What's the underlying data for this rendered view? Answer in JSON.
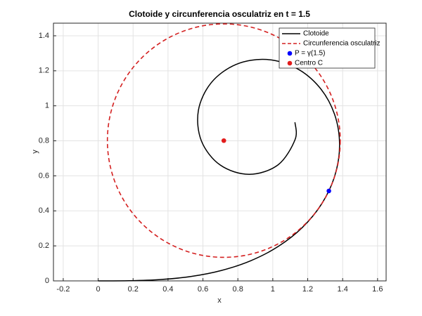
{
  "chart_data": {
    "type": "line",
    "title": "Clotoide y circunferencia osculatriz en t = 1.5",
    "x_label": "x",
    "y_label": "y",
    "xlim": [
      -0.256,
      1.649
    ],
    "ylim": [
      0,
      1.472
    ],
    "xticks": [
      -0.2,
      0,
      0.2,
      0.4,
      0.6,
      0.8,
      1,
      1.2,
      1.4,
      1.6
    ],
    "yticks": [
      0,
      0.2,
      0.4,
      0.6,
      0.8,
      1,
      1.2,
      1.4
    ],
    "grid": true,
    "legend": "top-right",
    "series": [
      {
        "name": "Clotoide",
        "style": "line",
        "color": "#000000",
        "x": [
          0,
          0.1773,
          0.3543,
          0.5307,
          0.7046,
          0.8726,
          1.03,
          1.1693,
          1.2812,
          1.3556,
          1.3824,
          1.3538,
          1.268,
          1.1319,
          0.9626,
          0.7893,
          0.6478,
          0.5739,
          0.5913,
          0.6991,
          0.8653,
          1.0309,
          1.1278,
          1.127
        ],
        "y": [
          0,
          0.0009,
          0.0074,
          0.025,
          0.0592,
          0.1147,
          0.1959,
          0.305,
          0.4419,
          0.6023,
          0.7769,
          0.951,
          1.105,
          1.2165,
          1.2647,
          1.2363,
          1.1324,
          0.9735,
          0.7992,
          0.6617,
          0.6087,
          0.6634,
          0.8077,
          0.906
        ]
      },
      {
        "name": "Circunferencia osculatriz",
        "style": "circle",
        "color": "#d42020",
        "dashed": true,
        "center": [
          0.7196,
          0.8012
        ],
        "radius": 0.6667
      },
      {
        "name": "P = γ(1.5)",
        "style": "marker",
        "color": "#0000ff",
        "x": [
          1.3211
        ],
        "y": [
          0.5137
        ]
      },
      {
        "name": "Centro C",
        "style": "marker",
        "color": "#e21c1c",
        "x": [
          0.7196
        ],
        "y": [
          0.8012
        ]
      }
    ]
  }
}
